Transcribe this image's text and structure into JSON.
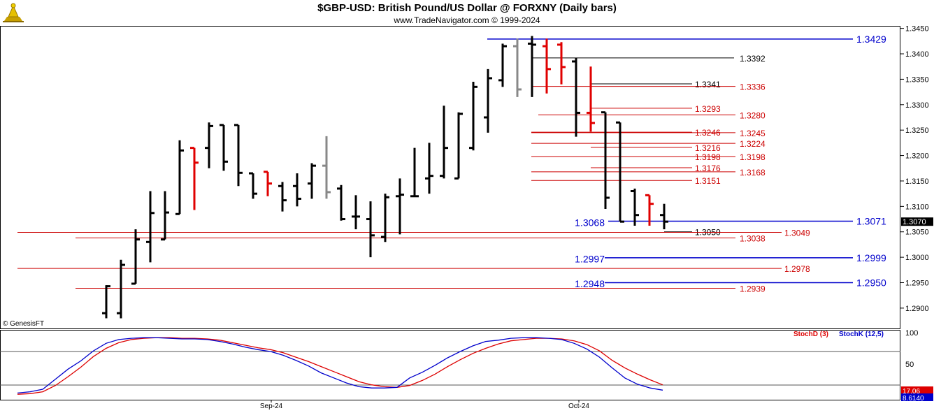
{
  "header": {
    "title": "$GBP-USD:  British Pound/US Dollar @ FORXNY  (Daily bars)",
    "subtitle": "www.TradeNavigator.com © 1999-2024",
    "copyright": "© GenesisFT"
  },
  "colors": {
    "up_bar": "#000000",
    "down_bar": "#e00000",
    "neutral_bar": "#888888",
    "blue_line": "#0000cc",
    "red_line": "#cc0000",
    "black_line": "#000000",
    "stoch_d": "#dd0000",
    "stoch_k": "#0000cc"
  },
  "chart_data": [
    {
      "type": "ohlc",
      "title": "$GBP-USD:  British Pound/US Dollar @ FORXNY  (Daily bars)",
      "ylim": [
        1.286,
        1.3455
      ],
      "y_ticks": [
        "1.3450",
        "1.3400",
        "1.3350",
        "1.3300",
        "1.3250",
        "1.3200",
        "1.3150",
        "1.3100",
        "1.3050",
        "1.3000",
        "1.2950",
        "1.2900"
      ],
      "x_labels": [
        "Sep-24",
        "Oct-24"
      ],
      "last_price_label": "1.3070",
      "bars": [
        {
          "o": 1.289,
          "h": 1.2945,
          "l": 1.288,
          "c": 1.2943,
          "color": "up"
        },
        {
          "o": 1.289,
          "h": 1.2995,
          "l": 1.288,
          "c": 1.2985,
          "color": "up"
        },
        {
          "o": 1.2948,
          "h": 1.3055,
          "l": 1.2948,
          "c": 1.3035,
          "color": "up"
        },
        {
          "o": 1.303,
          "h": 1.313,
          "l": 1.299,
          "c": 1.3087,
          "color": "up"
        },
        {
          "o": 1.3035,
          "h": 1.313,
          "l": 1.3035,
          "c": 1.3088,
          "color": "up"
        },
        {
          "o": 1.3085,
          "h": 1.323,
          "l": 1.3085,
          "c": 1.321,
          "color": "up"
        },
        {
          "o": 1.3215,
          "h": 1.3215,
          "l": 1.3093,
          "c": 1.3186,
          "color": "down"
        },
        {
          "o": 1.3215,
          "h": 1.3265,
          "l": 1.3175,
          "c": 1.3258,
          "color": "up"
        },
        {
          "o": 1.326,
          "h": 1.326,
          "l": 1.317,
          "c": 1.3188,
          "color": "up"
        },
        {
          "o": 1.326,
          "h": 1.326,
          "l": 1.314,
          "c": 1.3166,
          "color": "up"
        },
        {
          "o": 1.3165,
          "h": 1.3165,
          "l": 1.3115,
          "c": 1.3125,
          "color": "up"
        },
        {
          "o": 1.3168,
          "h": 1.3168,
          "l": 1.312,
          "c": 1.3145,
          "color": "down"
        },
        {
          "o": 1.314,
          "h": 1.3148,
          "l": 1.309,
          "c": 1.3112,
          "color": "up"
        },
        {
          "o": 1.314,
          "h": 1.3165,
          "l": 1.31,
          "c": 1.3115,
          "color": "up"
        },
        {
          "o": 1.3145,
          "h": 1.3185,
          "l": 1.3115,
          "c": 1.318,
          "color": "up"
        },
        {
          "o": 1.318,
          "h": 1.3238,
          "l": 1.3115,
          "c": 1.3128,
          "color": "neutral"
        },
        {
          "o": 1.3135,
          "h": 1.3142,
          "l": 1.3072,
          "c": 1.3075,
          "color": "up"
        },
        {
          "o": 1.308,
          "h": 1.3122,
          "l": 1.3055,
          "c": 1.308,
          "color": "up"
        },
        {
          "o": 1.3075,
          "h": 1.311,
          "l": 1.3,
          "c": 1.3043,
          "color": "up"
        },
        {
          "o": 1.304,
          "h": 1.3125,
          "l": 1.303,
          "c": 1.3118,
          "color": "up"
        },
        {
          "o": 1.312,
          "h": 1.3155,
          "l": 1.3045,
          "c": 1.3123,
          "color": "up"
        },
        {
          "o": 1.312,
          "h": 1.3215,
          "l": 1.312,
          "c": 1.312,
          "color": "up"
        },
        {
          "o": 1.3155,
          "h": 1.3225,
          "l": 1.3125,
          "c": 1.316,
          "color": "up"
        },
        {
          "o": 1.316,
          "h": 1.3298,
          "l": 1.3155,
          "c": 1.3215,
          "color": "up"
        },
        {
          "o": 1.3155,
          "h": 1.3285,
          "l": 1.3155,
          "c": 1.3282,
          "color": "up"
        },
        {
          "o": 1.3215,
          "h": 1.3345,
          "l": 1.321,
          "c": 1.3335,
          "color": "up"
        },
        {
          "o": 1.3275,
          "h": 1.337,
          "l": 1.3245,
          "c": 1.3352,
          "color": "up"
        },
        {
          "o": 1.3348,
          "h": 1.342,
          "l": 1.3335,
          "c": 1.3415,
          "color": "up"
        },
        {
          "o": 1.3415,
          "h": 1.343,
          "l": 1.3315,
          "c": 1.333,
          "color": "neutral"
        },
        {
          "o": 1.342,
          "h": 1.3435,
          "l": 1.3315,
          "c": 1.3418,
          "color": "up"
        },
        {
          "o": 1.3415,
          "h": 1.343,
          "l": 1.3322,
          "c": 1.337,
          "color": "down"
        },
        {
          "o": 1.3418,
          "h": 1.3423,
          "l": 1.334,
          "c": 1.3374,
          "color": "down"
        },
        {
          "o": 1.3385,
          "h": 1.3392,
          "l": 1.3237,
          "c": 1.3284,
          "color": "up"
        },
        {
          "o": 1.3284,
          "h": 1.3375,
          "l": 1.3247,
          "c": 1.3264,
          "color": "down"
        },
        {
          "o": 1.3285,
          "h": 1.3285,
          "l": 1.3095,
          "c": 1.3117,
          "color": "up"
        },
        {
          "o": 1.3265,
          "h": 1.3265,
          "l": 1.307,
          "c": 1.307,
          "color": "up"
        },
        {
          "o": 1.313,
          "h": 1.3135,
          "l": 1.3062,
          "c": 1.3083,
          "color": "up"
        },
        {
          "o": 1.3122,
          "h": 1.3122,
          "l": 1.3062,
          "c": 1.3105,
          "color": "down"
        },
        {
          "o": 1.3083,
          "h": 1.3105,
          "l": 1.3055,
          "c": 1.307,
          "color": "up"
        }
      ],
      "levels": [
        {
          "price": 1.3429,
          "label": "1.3429",
          "color": "blue",
          "style": "full"
        },
        {
          "price": 1.3392,
          "label": "1.3392",
          "color": "black",
          "style": "short"
        },
        {
          "price": 1.3341,
          "label": "1.3341",
          "color": "black",
          "style": "short"
        },
        {
          "price": 1.3336,
          "label": "1.3336",
          "color": "red",
          "style": "right"
        },
        {
          "price": 1.3293,
          "label": "1.3293",
          "color": "red",
          "style": "mid"
        },
        {
          "price": 1.328,
          "label": "1.3280",
          "color": "red",
          "style": "right"
        },
        {
          "price": 1.3246,
          "label": "1.3246",
          "color": "red",
          "style": "mid"
        },
        {
          "price": 1.3245,
          "label": "1.3245",
          "color": "red",
          "style": "right"
        },
        {
          "price": 1.3224,
          "label": "1.3224",
          "color": "red",
          "style": "right"
        },
        {
          "price": 1.3216,
          "label": "1.3216",
          "color": "red",
          "style": "mid"
        },
        {
          "price": 1.3198,
          "label": "1.3198",
          "color": "red",
          "style": "right"
        },
        {
          "price": 1.3198,
          "label": "1.3198",
          "color": "red",
          "style": "mid"
        },
        {
          "price": 1.3176,
          "label": "1.3176",
          "color": "red",
          "style": "mid"
        },
        {
          "price": 1.3168,
          "label": "1.3168",
          "color": "red",
          "style": "right"
        },
        {
          "price": 1.3151,
          "label": "1.3151",
          "color": "red",
          "style": "mid"
        },
        {
          "price": 1.3071,
          "label": "1.3071",
          "color": "blue",
          "style": "full"
        },
        {
          "price": 1.3068,
          "label": "1.3068",
          "color": "blue",
          "style": "leftlabel"
        },
        {
          "price": 1.305,
          "label": "1.3050",
          "color": "black",
          "style": "short"
        },
        {
          "price": 1.3049,
          "label": "1.3049",
          "color": "red",
          "style": "long"
        },
        {
          "price": 1.3038,
          "label": "1.3038",
          "color": "red",
          "style": "long2"
        },
        {
          "price": 1.2999,
          "label": "1.2999",
          "color": "blue",
          "style": "full"
        },
        {
          "price": 1.2997,
          "label": "1.2997",
          "color": "blue",
          "style": "leftlabel"
        },
        {
          "price": 1.2978,
          "label": "1.2978",
          "color": "red",
          "style": "long"
        },
        {
          "price": 1.295,
          "label": "1.2950",
          "color": "blue",
          "style": "full"
        },
        {
          "price": 1.2948,
          "label": "1.2948",
          "color": "blue",
          "style": "leftlabel"
        },
        {
          "price": 1.2939,
          "label": "1.2939",
          "color": "red",
          "style": "long2"
        }
      ]
    },
    {
      "type": "line",
      "legend": [
        {
          "name": "StochD (3)",
          "color": "#dd0000"
        },
        {
          "name": "StochK (12,5)",
          "color": "#0000cc"
        }
      ],
      "ylim": [
        0,
        100
      ],
      "y_ticks": [
        "100",
        "50"
      ],
      "last_values": [
        "17.06",
        "8.6140"
      ],
      "series": [
        {
          "name": "StochD (3)",
          "values": [
            2,
            3,
            6,
            16,
            30,
            45,
            62,
            75,
            84,
            89,
            91,
            92,
            92,
            91,
            91,
            90,
            88,
            84,
            80,
            76,
            73,
            68,
            61,
            54,
            46,
            38,
            30,
            22,
            17,
            14,
            13,
            16,
            24,
            34,
            46,
            57,
            67,
            75,
            82,
            87,
            89,
            91,
            91,
            90,
            87,
            81,
            71,
            56,
            44,
            34,
            25,
            17
          ]
        },
        {
          "name": "StochK (12,5)",
          "values": [
            4,
            6,
            10,
            26,
            42,
            55,
            71,
            83,
            89,
            91,
            92,
            92,
            91,
            90,
            90,
            89,
            86,
            82,
            77,
            73,
            70,
            64,
            56,
            47,
            36,
            28,
            20,
            14,
            12,
            12,
            13,
            28,
            37,
            48,
            60,
            70,
            79,
            86,
            88,
            91,
            92,
            92,
            91,
            89,
            83,
            74,
            61,
            44,
            28,
            18,
            12,
            8.6
          ]
        }
      ]
    }
  ]
}
